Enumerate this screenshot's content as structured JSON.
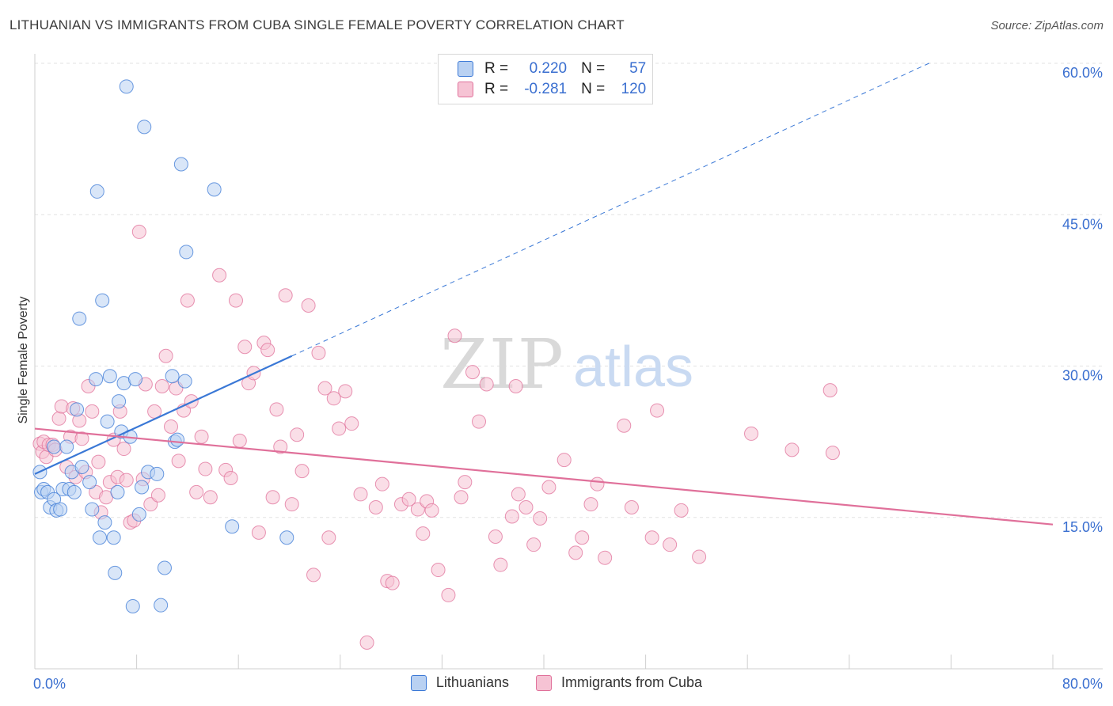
{
  "title": "LITHUANIAN VS IMMIGRANTS FROM CUBA SINGLE FEMALE POVERTY CORRELATION CHART",
  "source": "Source: ZipAtlas.com",
  "watermark": {
    "zip": "ZIP",
    "atlas": "atlas"
  },
  "legend_top": {
    "r_label": "R =",
    "n_label": "N =",
    "rows": [
      {
        "r": "0.220",
        "n": "57"
      },
      {
        "r": "-0.281",
        "n": "120"
      }
    ]
  },
  "colors": {
    "blue": "#3a78d6",
    "blue_fill": "#b9d1f2",
    "pink": "#e0709a",
    "pink_fill": "#f6c3d4",
    "axis_text": "#3a6fd0",
    "grid": "#e2e2e2"
  },
  "chart_data": {
    "type": "scatter",
    "title": "LITHUANIAN VS IMMIGRANTS FROM CUBA SINGLE FEMALE POVERTY CORRELATION CHART",
    "xlabel": "",
    "ylabel": "Single Female Poverty",
    "xlim": [
      0,
      80
    ],
    "ylim": [
      0,
      60
    ],
    "x_tick_labels": [
      "0.0%",
      "80.0%"
    ],
    "y_ticks": [
      15,
      30,
      45,
      60
    ],
    "y_tick_labels": [
      "15.0%",
      "30.0%",
      "45.0%",
      "60.0%"
    ],
    "grid": true,
    "series": [
      {
        "name": "Lithuanians",
        "r": 0.22,
        "n": 57,
        "trend": {
          "x0": 0,
          "y0": 19.3,
          "x1": 20.2,
          "y1": 31.0,
          "dash_to_x": 80
        },
        "points": [
          [
            0.4,
            19.5
          ],
          [
            0.5,
            17.5
          ],
          [
            0.7,
            17.8
          ],
          [
            1.0,
            17.5
          ],
          [
            1.2,
            16.0
          ],
          [
            1.5,
            16.8
          ],
          [
            1.5,
            22.0
          ],
          [
            1.7,
            15.7
          ],
          [
            2.0,
            15.8
          ],
          [
            2.2,
            17.8
          ],
          [
            2.5,
            22.0
          ],
          [
            2.7,
            17.8
          ],
          [
            2.9,
            19.5
          ],
          [
            3.1,
            17.5
          ],
          [
            3.3,
            25.7
          ],
          [
            3.5,
            34.7
          ],
          [
            3.7,
            20.0
          ],
          [
            4.3,
            18.5
          ],
          [
            4.5,
            15.8
          ],
          [
            4.8,
            28.7
          ],
          [
            4.9,
            47.3
          ],
          [
            5.1,
            13.0
          ],
          [
            5.3,
            36.5
          ],
          [
            5.5,
            14.5
          ],
          [
            5.7,
            24.5
          ],
          [
            5.9,
            29.0
          ],
          [
            6.2,
            13.0
          ],
          [
            6.3,
            9.5
          ],
          [
            6.5,
            17.5
          ],
          [
            6.6,
            26.5
          ],
          [
            6.8,
            23.5
          ],
          [
            7.0,
            28.3
          ],
          [
            7.2,
            57.7
          ],
          [
            7.5,
            23.0
          ],
          [
            7.7,
            6.2
          ],
          [
            7.9,
            28.7
          ],
          [
            8.2,
            15.3
          ],
          [
            8.4,
            18.0
          ],
          [
            8.6,
            53.7
          ],
          [
            8.9,
            19.5
          ],
          [
            9.6,
            19.3
          ],
          [
            9.9,
            6.3
          ],
          [
            10.2,
            10.0
          ],
          [
            10.8,
            29.0
          ],
          [
            11.0,
            22.5
          ],
          [
            11.2,
            22.7
          ],
          [
            11.5,
            50.0
          ],
          [
            11.8,
            28.5
          ],
          [
            11.9,
            41.3
          ],
          [
            14.1,
            47.5
          ],
          [
            15.5,
            14.1
          ],
          [
            19.8,
            13.0
          ]
        ]
      },
      {
        "name": "Immigrants from Cuba",
        "r": -0.281,
        "n": 120,
        "trend": {
          "x0": 0,
          "y0": 23.8,
          "x1": 80,
          "y1": 14.3
        },
        "points": [
          [
            0.4,
            22.3
          ],
          [
            0.6,
            21.5
          ],
          [
            0.7,
            22.5
          ],
          [
            0.9,
            21.0
          ],
          [
            1.1,
            22.2
          ],
          [
            1.4,
            22.2
          ],
          [
            1.6,
            21.7
          ],
          [
            1.9,
            24.8
          ],
          [
            2.1,
            26.0
          ],
          [
            2.5,
            20.0
          ],
          [
            2.8,
            23.0
          ],
          [
            3.0,
            25.8
          ],
          [
            3.2,
            19.0
          ],
          [
            3.5,
            24.6
          ],
          [
            3.7,
            22.8
          ],
          [
            4.0,
            19.5
          ],
          [
            4.2,
            28.0
          ],
          [
            4.5,
            25.5
          ],
          [
            4.8,
            17.5
          ],
          [
            5.0,
            20.5
          ],
          [
            5.2,
            15.5
          ],
          [
            5.6,
            17.0
          ],
          [
            5.9,
            18.5
          ],
          [
            6.2,
            22.7
          ],
          [
            6.5,
            19.0
          ],
          [
            6.7,
            25.5
          ],
          [
            7.0,
            21.8
          ],
          [
            7.2,
            18.7
          ],
          [
            7.5,
            14.5
          ],
          [
            7.8,
            14.7
          ],
          [
            8.2,
            43.3
          ],
          [
            8.5,
            18.8
          ],
          [
            8.7,
            28.2
          ],
          [
            9.1,
            16.3
          ],
          [
            9.4,
            25.5
          ],
          [
            9.7,
            17.2
          ],
          [
            10.0,
            28.0
          ],
          [
            10.3,
            31.0
          ],
          [
            10.7,
            24.0
          ],
          [
            11.1,
            27.8
          ],
          [
            11.3,
            20.6
          ],
          [
            11.7,
            25.6
          ],
          [
            12.0,
            36.5
          ],
          [
            12.3,
            26.5
          ],
          [
            12.7,
            17.5
          ],
          [
            13.1,
            23.0
          ],
          [
            13.4,
            19.8
          ],
          [
            13.8,
            17.0
          ],
          [
            14.5,
            39.0
          ],
          [
            15.0,
            19.7
          ],
          [
            15.4,
            18.9
          ],
          [
            15.8,
            36.5
          ],
          [
            16.1,
            22.6
          ],
          [
            16.5,
            31.9
          ],
          [
            16.8,
            28.3
          ],
          [
            17.2,
            29.3
          ],
          [
            17.6,
            13.5
          ],
          [
            18.0,
            32.3
          ],
          [
            18.3,
            31.6
          ],
          [
            18.7,
            17.0
          ],
          [
            19.0,
            25.7
          ],
          [
            19.3,
            22.0
          ],
          [
            19.7,
            37.0
          ],
          [
            20.2,
            16.3
          ],
          [
            20.6,
            23.2
          ],
          [
            21.0,
            19.6
          ],
          [
            21.5,
            36.0
          ],
          [
            21.9,
            9.3
          ],
          [
            22.3,
            31.3
          ],
          [
            22.8,
            27.8
          ],
          [
            23.1,
            13.0
          ],
          [
            23.5,
            26.8
          ],
          [
            23.9,
            23.8
          ],
          [
            24.4,
            27.5
          ],
          [
            24.9,
            24.3
          ],
          [
            25.6,
            17.3
          ],
          [
            26.1,
            2.6
          ],
          [
            26.8,
            16.0
          ],
          [
            27.3,
            18.3
          ],
          [
            27.7,
            8.7
          ],
          [
            28.1,
            8.5
          ],
          [
            28.8,
            16.3
          ],
          [
            29.4,
            16.8
          ],
          [
            30.1,
            15.8
          ],
          [
            30.5,
            13.4
          ],
          [
            30.8,
            16.6
          ],
          [
            31.2,
            15.7
          ],
          [
            31.7,
            9.8
          ],
          [
            32.5,
            7.3
          ],
          [
            33.0,
            33.0
          ],
          [
            33.5,
            17.0
          ],
          [
            33.8,
            18.5
          ],
          [
            34.4,
            29.4
          ],
          [
            34.9,
            24.5
          ],
          [
            35.5,
            28.2
          ],
          [
            36.2,
            13.1
          ],
          [
            36.6,
            10.3
          ],
          [
            37.5,
            15.1
          ],
          [
            37.8,
            28.0
          ],
          [
            38.0,
            17.3
          ],
          [
            38.6,
            16.0
          ],
          [
            39.2,
            12.3
          ],
          [
            39.7,
            14.9
          ],
          [
            40.4,
            18.0
          ],
          [
            41.6,
            20.7
          ],
          [
            42.5,
            11.5
          ],
          [
            43.0,
            13.0
          ],
          [
            43.7,
            16.3
          ],
          [
            44.2,
            18.3
          ],
          [
            44.8,
            11.0
          ],
          [
            46.3,
            24.1
          ],
          [
            46.9,
            16.0
          ],
          [
            48.5,
            13.0
          ],
          [
            48.9,
            25.6
          ],
          [
            49.9,
            12.3
          ],
          [
            50.8,
            15.7
          ],
          [
            52.2,
            11.1
          ],
          [
            56.3,
            23.3
          ],
          [
            59.5,
            21.7
          ],
          [
            62.5,
            27.6
          ],
          [
            62.7,
            21.4
          ]
        ]
      }
    ]
  },
  "bottom_legend": [
    "Lithuanians",
    "Immigrants from Cuba"
  ]
}
